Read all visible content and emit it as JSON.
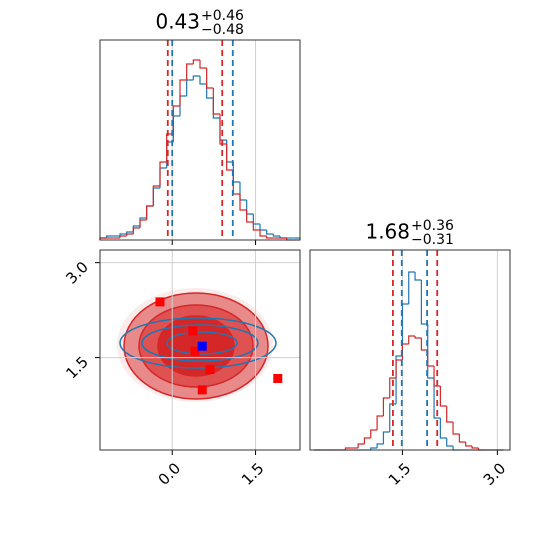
{
  "chart_data": [
    {
      "type": "histogram",
      "title": {
        "value": "0.43",
        "upper": "+0.46",
        "lower": "−0.48"
      },
      "bins": [
        -1.3,
        -1.18,
        -1.06,
        -0.94,
        -0.82,
        -0.7,
        -0.58,
        -0.46,
        -0.34,
        -0.22,
        -0.1,
        0.02,
        0.14,
        0.26,
        0.38,
        0.5,
        0.62,
        0.74,
        0.86,
        0.98,
        1.1,
        1.22,
        1.34,
        1.46,
        1.58,
        1.7,
        1.82,
        1.94,
        2.06,
        2.18,
        2.3
      ],
      "xlim": [
        -1.3,
        2.3
      ],
      "ylim": [
        0,
        100
      ],
      "xticks": [
        0,
        1.5
      ],
      "grid": true,
      "series": [
        {
          "color": "#1f77b4",
          "values": [
            1,
            2,
            2,
            3,
            4,
            7,
            11,
            17,
            26,
            36,
            49,
            62,
            72,
            80,
            82,
            78,
            71,
            61,
            50,
            39,
            29,
            20,
            13,
            8,
            5,
            3,
            2,
            1,
            1,
            1
          ]
        },
        {
          "color": "#d62728",
          "values": [
            1,
            1,
            1,
            2,
            3,
            6,
            10,
            17,
            27,
            39,
            53,
            67,
            80,
            88,
            90,
            86,
            76,
            63,
            48,
            35,
            23,
            15,
            9,
            5,
            2,
            1,
            1,
            1,
            0,
            0
          ]
        }
      ],
      "quantiles": [
        {
          "color": "#1f77b4",
          "values": [
            0,
            1.09
          ]
        },
        {
          "color": "#d62728",
          "values": [
            -0.08,
            0.9
          ]
        }
      ]
    },
    {
      "type": "scatter",
      "xlim": [
        -1.3,
        2.3
      ],
      "ylim": [
        0.04,
        3.2
      ],
      "xticks": [
        {
          "value": 0,
          "label": "0.0"
        },
        1.5
      ],
      "yticks": [
        1.5,
        {
          "value": 3,
          "label": "3.0"
        }
      ],
      "grid": true,
      "series": [
        {
          "color": "#ff0000",
          "x": [
            -0.22,
            0.37,
            0.41,
            0.68,
            0.54,
            1.9
          ],
          "y": [
            2.38,
            1.92,
            1.6,
            1.31,
            0.99,
            1.17
          ]
        },
        {
          "color": "#0000ff",
          "x": [
            0.54
          ],
          "y": [
            1.68
          ]
        }
      ]
    },
    {
      "type": "histogram",
      "title": {
        "value": "1.68",
        "upper": "+0.36",
        "lower": "−0.31"
      },
      "bins": [
        0.1,
        0.2,
        0.3,
        0.4,
        0.5,
        0.6,
        0.7,
        0.8,
        0.9,
        1.0,
        1.1,
        1.2,
        1.3,
        1.4,
        1.5,
        1.6,
        1.7,
        1.8,
        1.9,
        2.0,
        2.1,
        2.2,
        2.3,
        2.4,
        2.5,
        2.6,
        2.7,
        2.8,
        2.9,
        3.0,
        3.1
      ],
      "xlim": [
        0.04,
        3.2
      ],
      "ylim": [
        0,
        100
      ],
      "xticks": [
        1.5,
        {
          "value": 3,
          "label": "3.0"
        }
      ],
      "grid": true,
      "series": [
        {
          "color": "#1f77b4",
          "values": [
            0,
            0,
            0,
            0,
            0,
            0,
            0,
            0,
            0,
            1,
            3,
            9,
            23,
            47,
            73,
            89,
            85,
            63,
            36,
            16,
            6,
            2,
            0,
            0,
            0,
            0,
            0,
            0,
            0,
            0
          ]
        },
        {
          "color": "#d62728",
          "values": [
            0,
            0,
            0,
            0,
            0,
            1,
            1,
            3,
            6,
            10,
            17,
            26,
            36,
            45,
            53,
            57,
            56,
            50,
            42,
            32,
            22,
            14,
            8,
            4,
            2,
            1,
            0,
            0,
            0,
            0
          ]
        }
      ],
      "quantiles": [
        {
          "color": "#1f77b4",
          "values": [
            1.49,
            1.89
          ]
        },
        {
          "color": "#d62728",
          "values": [
            1.35,
            2.05
          ]
        }
      ]
    }
  ]
}
